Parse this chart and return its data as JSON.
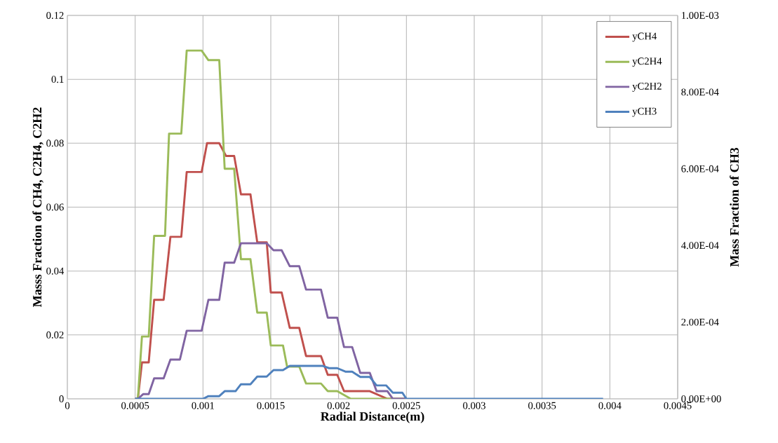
{
  "chart_data": {
    "type": "line",
    "xlabel": "Radial Distance(m)",
    "ylabel": "Masss Fraction of CH4, C2H4, C2H2",
    "y2label": "Mass Fraction of CH3",
    "xlim": [
      0,
      0.0045
    ],
    "xticks": [
      0,
      0.0005,
      0.001,
      0.0015,
      0.002,
      0.0025,
      0.003,
      0.0035,
      0.004,
      0.0045
    ],
    "ylim": [
      0,
      0.12
    ],
    "yticks": [
      0,
      0.02,
      0.04,
      0.06,
      0.08,
      0.1,
      0.12
    ],
    "y2lim": [
      0,
      0.001
    ],
    "y2ticks": [
      {
        "value": 0,
        "label": "0.00E+00"
      },
      {
        "value": 0.0002,
        "label": "2.00E-04"
      },
      {
        "value": 0.0004,
        "label": "4.00E-04"
      },
      {
        "value": 0.0006,
        "label": "6.00E-04"
      },
      {
        "value": 0.0008,
        "label": "8.00E-04"
      },
      {
        "value": 0.001,
        "label": "1.00E-03"
      }
    ],
    "grid": true,
    "legend": "top right",
    "series": [
      {
        "name": "yCH4",
        "color": "#c0504d",
        "x": [
          0.0005,
          0.00052,
          0.00055,
          0.0006,
          0.00064,
          0.00071,
          0.00076,
          0.00084,
          0.00088,
          0.00099,
          0.00103,
          0.00112,
          0.00117,
          0.00123,
          0.00128,
          0.00135,
          0.0014,
          0.00147,
          0.0015,
          0.00158,
          0.00164,
          0.00171,
          0.00176,
          0.00187,
          0.00192,
          0.00199,
          0.00204,
          0.00223,
          0.00236,
          0.0025
        ],
        "values": [
          0,
          0,
          0.0114,
          0.0114,
          0.031,
          0.031,
          0.0507,
          0.0507,
          0.071,
          0.071,
          0.08,
          0.08,
          0.076,
          0.076,
          0.064,
          0.064,
          0.049,
          0.049,
          0.0333,
          0.0333,
          0.0222,
          0.0222,
          0.0134,
          0.0134,
          0.0075,
          0.0075,
          0.0024,
          0.0024,
          0,
          0
        ]
      },
      {
        "name": "yC2H4",
        "color": "#9bbb59",
        "x": [
          0.0005,
          0.00052,
          0.00055,
          0.0006,
          0.00064,
          0.00072,
          0.00075,
          0.00084,
          0.00088,
          0.00099,
          0.00104,
          0.00112,
          0.00116,
          0.00123,
          0.00128,
          0.00135,
          0.0014,
          0.00147,
          0.0015,
          0.00159,
          0.00162,
          0.00171,
          0.00176,
          0.00187,
          0.00192,
          0.00199,
          0.00209,
          0.0025
        ],
        "values": [
          0,
          0,
          0.0195,
          0.0195,
          0.051,
          0.051,
          0.083,
          0.083,
          0.109,
          0.109,
          0.106,
          0.106,
          0.072,
          0.072,
          0.0437,
          0.0437,
          0.027,
          0.027,
          0.0167,
          0.0167,
          0.0101,
          0.0101,
          0.0048,
          0.0048,
          0.0024,
          0.0024,
          0,
          0
        ]
      },
      {
        "name": "yC2H2",
        "color": "#8064a2",
        "x": [
          0.0005,
          0.00052,
          0.00056,
          0.0006,
          0.00064,
          0.00071,
          0.00076,
          0.00083,
          0.00088,
          0.00099,
          0.00104,
          0.00112,
          0.00116,
          0.00123,
          0.00128,
          0.00147,
          0.00152,
          0.00158,
          0.00164,
          0.00171,
          0.00176,
          0.00187,
          0.00192,
          0.00199,
          0.00204,
          0.0021,
          0.00216,
          0.00223,
          0.00228,
          0.00236,
          0.0024,
          0.0025
        ],
        "values": [
          0,
          0,
          0.0015,
          0.0015,
          0.0064,
          0.0064,
          0.0123,
          0.0123,
          0.0213,
          0.0213,
          0.031,
          0.031,
          0.0426,
          0.0426,
          0.0487,
          0.0487,
          0.0465,
          0.0465,
          0.0415,
          0.0415,
          0.0342,
          0.0342,
          0.0254,
          0.0254,
          0.0162,
          0.0162,
          0.0081,
          0.0081,
          0.0024,
          0.0024,
          0,
          0
        ]
      },
      {
        "name": "yCH3",
        "color": "#4f81bd",
        "axis": "y2",
        "x": [
          0.0005,
          0.001,
          0.00104,
          0.00112,
          0.00116,
          0.00124,
          0.00128,
          0.00135,
          0.0014,
          0.00147,
          0.00152,
          0.00159,
          0.00164,
          0.00188,
          0.00193,
          0.00199,
          0.00205,
          0.0021,
          0.00216,
          0.00223,
          0.00228,
          0.00235,
          0.0024,
          0.00247,
          0.0025,
          0.00395
        ],
        "values": [
          0,
          0,
          7e-06,
          7e-06,
          2e-05,
          2e-05,
          3.8e-05,
          3.8e-05,
          5.8e-05,
          5.8e-05,
          7.5e-05,
          7.5e-05,
          8.6e-05,
          8.6e-05,
          8e-05,
          8e-05,
          7.1e-05,
          7.1e-05,
          5.7e-05,
          5.7e-05,
          3.5e-05,
          3.5e-05,
          1.6e-05,
          1.6e-05,
          0,
          0
        ]
      }
    ]
  }
}
